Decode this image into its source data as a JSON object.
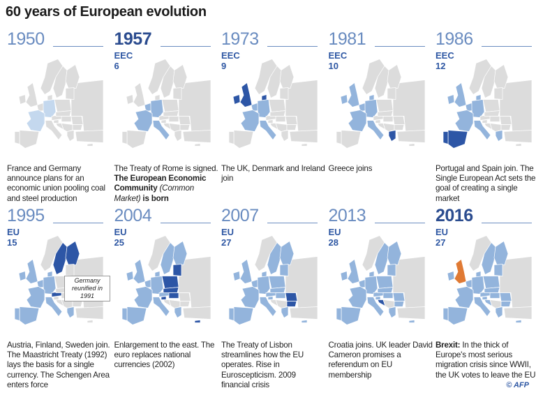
{
  "title": "60 years of European evolution",
  "colors": {
    "land": "#dcdcdc",
    "member": "#93b4dc",
    "new": "#2d56a6",
    "founding_1950": "#c4d8ee",
    "brexit": "#e07a34",
    "border": "#ffffff"
  },
  "panels": [
    {
      "year": "1950",
      "bold": false,
      "org": "",
      "count": "",
      "pale": [
        "france",
        "germany"
      ],
      "members": [],
      "new": [],
      "text": [
        {
          "t": "France and Germany announce plans for an economic union pooling coal and steel production"
        }
      ]
    },
    {
      "year": "1957",
      "bold": true,
      "org": "EEC",
      "count": "6",
      "members": [
        "france",
        "germany",
        "benelux",
        "italy"
      ],
      "new": [],
      "text": [
        {
          "t": "The Treaty of Rome is signed. "
        },
        {
          "t": "The European Economic Community",
          "s": "b"
        },
        {
          "t": " "
        },
        {
          "t": "(Common Market)",
          "s": "i"
        },
        {
          "t": " is born",
          "s": "b"
        }
      ]
    },
    {
      "year": "1973",
      "bold": false,
      "org": "EEC",
      "count": "9",
      "members": [
        "france",
        "germany",
        "benelux",
        "italy"
      ],
      "new": [
        "uk",
        "ireland",
        "denmark"
      ],
      "text": [
        {
          "t": "The UK, Denmark and Ireland join"
        }
      ]
    },
    {
      "year": "1981",
      "bold": false,
      "org": "EEC",
      "count": "10",
      "members": [
        "france",
        "germany",
        "benelux",
        "italy",
        "uk",
        "ireland",
        "denmark"
      ],
      "new": [
        "greece"
      ],
      "text": [
        {
          "t": "Greece joins"
        }
      ]
    },
    {
      "year": "1986",
      "bold": false,
      "org": "EEC",
      "count": "12",
      "members": [
        "france",
        "germany",
        "benelux",
        "italy",
        "uk",
        "ireland",
        "denmark",
        "greece"
      ],
      "new": [
        "spain",
        "portugal"
      ],
      "text": [
        {
          "t": "Portugal and Spain join. The Single European Act sets the goal of creating a single market"
        }
      ]
    },
    {
      "year": "1995",
      "bold": false,
      "org": "EU",
      "count": "15",
      "members": [
        "france",
        "germany",
        "benelux",
        "italy",
        "uk",
        "ireland",
        "denmark",
        "greece",
        "spain",
        "portugal"
      ],
      "new": [
        "austria",
        "sweden",
        "finland"
      ],
      "callout": "Germany reunified in 1991",
      "text": [
        {
          "t": "Austria, Finland, Sweden join. The Maastricht Treaty (1992) lays the basis for a single currency.  The Schengen Area enters force"
        }
      ]
    },
    {
      "year": "2004",
      "bold": false,
      "org": "EU",
      "count": "25",
      "members": [
        "france",
        "germany",
        "benelux",
        "italy",
        "uk",
        "ireland",
        "denmark",
        "greece",
        "spain",
        "portugal",
        "austria",
        "sweden",
        "finland"
      ],
      "new": [
        "poland",
        "czech",
        "hungary",
        "baltics",
        "slovenia",
        "cyprus"
      ],
      "text": [
        {
          "t": "Enlargement to the east. The euro replaces national currencies (2002)"
        }
      ]
    },
    {
      "year": "2007",
      "bold": false,
      "org": "EU",
      "count": "27",
      "members": [
        "france",
        "germany",
        "benelux",
        "italy",
        "uk",
        "ireland",
        "denmark",
        "greece",
        "spain",
        "portugal",
        "austria",
        "sweden",
        "finland",
        "poland",
        "czech",
        "hungary",
        "baltics",
        "slovenia",
        "cyprus"
      ],
      "new": [
        "romania",
        "bulgaria"
      ],
      "text": [
        {
          "t": "The Treaty of Lisbon streamlines how the EU operates. Rise in Euroscepticism. 2009 financial crisis"
        }
      ]
    },
    {
      "year": "2013",
      "bold": false,
      "org": "EU",
      "count": "28",
      "members": [
        "france",
        "germany",
        "benelux",
        "italy",
        "uk",
        "ireland",
        "denmark",
        "greece",
        "spain",
        "portugal",
        "austria",
        "sweden",
        "finland",
        "poland",
        "czech",
        "hungary",
        "baltics",
        "slovenia",
        "cyprus",
        "romania",
        "bulgaria"
      ],
      "new": [
        "croatia"
      ],
      "text": [
        {
          "t": "Croatia joins. UK leader David Cameron promises a referendum on EU membership"
        }
      ]
    },
    {
      "year": "2016",
      "bold": true,
      "org": "EU",
      "count": "27",
      "members": [
        "france",
        "germany",
        "benelux",
        "italy",
        "ireland",
        "denmark",
        "greece",
        "spain",
        "portugal",
        "austria",
        "sweden",
        "finland",
        "poland",
        "czech",
        "hungary",
        "baltics",
        "slovenia",
        "cyprus",
        "romania",
        "bulgaria",
        "croatia"
      ],
      "new": [],
      "brexit": [
        "uk"
      ],
      "text": [
        {
          "t": "Brexit:",
          "s": "b"
        },
        {
          "t": " In the thick of Europe's most serious migration crisis since WWII, the UK votes to leave the EU"
        }
      ]
    }
  ],
  "credit": "© AFP"
}
